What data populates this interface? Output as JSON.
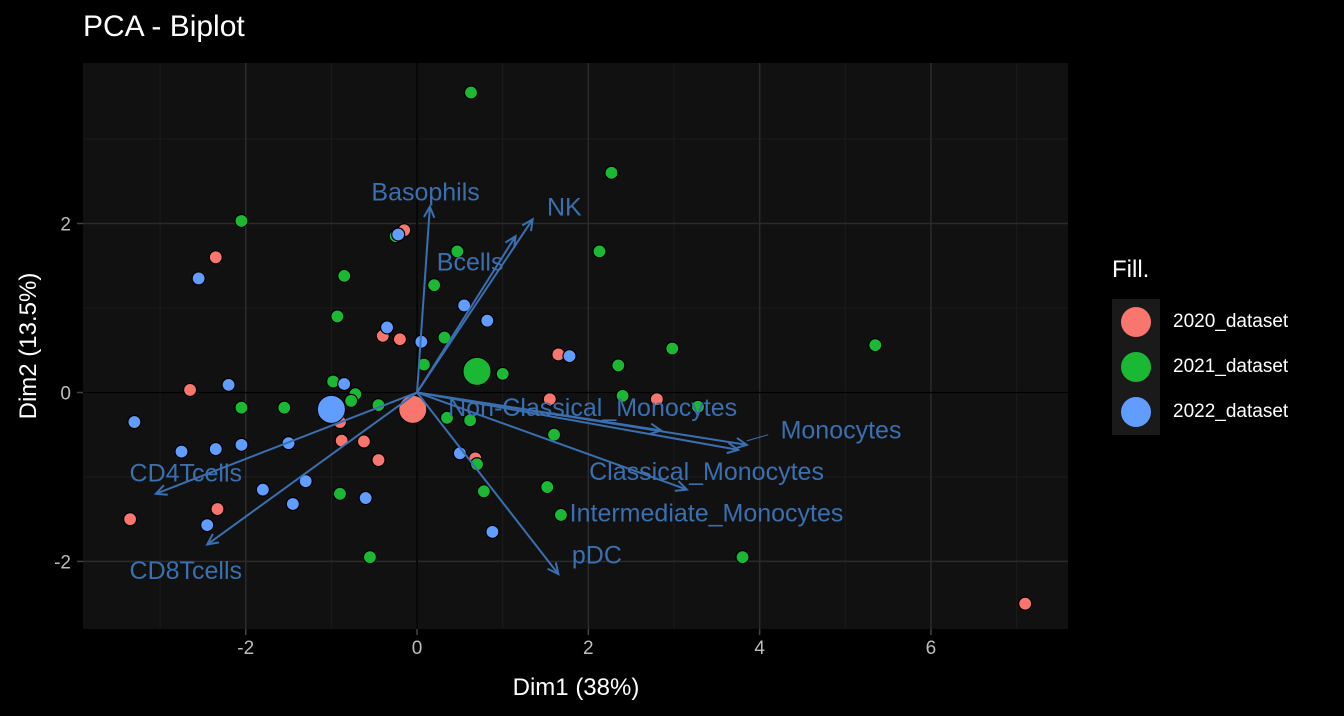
{
  "colors": {
    "background": "#000000",
    "panel": "#111111",
    "grid_major": "#2b2b2b",
    "grid_minor": "#1c1c1c",
    "arrow": "#3a6fb0",
    "group_2020": "#F8766D",
    "group_2021": "#1BB833",
    "group_2022": "#619CFF"
  },
  "chart_data": {
    "type": "scatter",
    "title": "PCA - Biplot",
    "xlabel": "Dim1 (38%)",
    "ylabel": "Dim2 (13.5%)",
    "xlim": [
      -3.9,
      7.6
    ],
    "ylim": [
      -2.8,
      3.9
    ],
    "xticks": [
      -2,
      0,
      2,
      4,
      6
    ],
    "yticks": [
      -2,
      0,
      2
    ],
    "grid": true,
    "legend": {
      "title": "Fill.",
      "position": "right"
    },
    "series": [
      {
        "name": "2020_dataset",
        "color": "#F8766D",
        "points": [
          [
            -2.35,
            1.6
          ],
          [
            -2.65,
            0.03
          ],
          [
            -3.35,
            -1.5
          ],
          [
            -2.33,
            -1.38
          ],
          [
            -0.15,
            1.92
          ],
          [
            -0.4,
            0.67
          ],
          [
            -0.2,
            0.63
          ],
          [
            -0.9,
            -0.35
          ],
          [
            -0.88,
            -0.57
          ],
          [
            -0.62,
            -0.58
          ],
          [
            -0.45,
            -0.8
          ],
          [
            0.05,
            -0.2
          ],
          [
            0.35,
            -0.3
          ],
          [
            0.68,
            -0.78
          ],
          [
            1.55,
            -0.08
          ],
          [
            1.65,
            0.45
          ],
          [
            2.8,
            -0.08
          ],
          [
            7.1,
            -2.5
          ]
        ],
        "centroid": [
          -0.05,
          -0.2
        ]
      },
      {
        "name": "2021_dataset",
        "color": "#1BB833",
        "points": [
          [
            0.63,
            3.55
          ],
          [
            2.27,
            2.6
          ],
          [
            -2.05,
            2.03
          ],
          [
            -0.25,
            1.85
          ],
          [
            0.47,
            1.67
          ],
          [
            2.13,
            1.67
          ],
          [
            -0.85,
            1.38
          ],
          [
            0.2,
            1.27
          ],
          [
            -0.93,
            0.9
          ],
          [
            0.32,
            0.65
          ],
          [
            0.08,
            0.33
          ],
          [
            1.0,
            0.22
          ],
          [
            2.35,
            0.32
          ],
          [
            2.98,
            0.52
          ],
          [
            5.35,
            0.56
          ],
          [
            -0.98,
            0.13
          ],
          [
            -0.72,
            -0.02
          ],
          [
            -0.77,
            -0.1
          ],
          [
            -2.05,
            -0.18
          ],
          [
            -1.55,
            -0.18
          ],
          [
            -0.45,
            -0.15
          ],
          [
            0.35,
            -0.3
          ],
          [
            0.62,
            -0.33
          ],
          [
            2.4,
            -0.04
          ],
          [
            3.28,
            -0.17
          ],
          [
            1.6,
            -0.5
          ],
          [
            0.7,
            -0.85
          ],
          [
            0.78,
            -1.17
          ],
          [
            1.52,
            -1.12
          ],
          [
            1.68,
            -1.45
          ],
          [
            -0.9,
            -1.2
          ],
          [
            -0.55,
            -1.95
          ],
          [
            3.8,
            -1.95
          ]
        ],
        "centroid": [
          0.7,
          0.25
        ]
      },
      {
        "name": "2022_dataset",
        "color": "#619CFF",
        "points": [
          [
            -2.55,
            1.35
          ],
          [
            -0.22,
            1.87
          ],
          [
            0.55,
            1.03
          ],
          [
            0.82,
            0.85
          ],
          [
            -0.35,
            0.77
          ],
          [
            0.05,
            0.6
          ],
          [
            1.78,
            0.43
          ],
          [
            -2.2,
            0.09
          ],
          [
            -0.85,
            0.1
          ],
          [
            -3.3,
            -0.35
          ],
          [
            -2.75,
            -0.7
          ],
          [
            -2.35,
            -0.67
          ],
          [
            -2.05,
            -0.62
          ],
          [
            -1.5,
            -0.6
          ],
          [
            -1.8,
            -1.15
          ],
          [
            -1.3,
            -1.05
          ],
          [
            -1.45,
            -1.32
          ],
          [
            -0.6,
            -1.25
          ],
          [
            -2.45,
            -1.57
          ],
          [
            0.5,
            -0.72
          ],
          [
            0.88,
            -1.65
          ]
        ],
        "centroid": [
          -1.0,
          -0.2
        ]
      }
    ],
    "loadings": [
      {
        "name": "Basophils",
        "x": 0.15,
        "y": 2.2
      },
      {
        "name": "NK",
        "x": 1.35,
        "y": 2.05
      },
      {
        "name": "Bcells",
        "x": 1.15,
        "y": 1.85
      },
      {
        "name": "Non-Classical_Monocytes",
        "x": 2.85,
        "y": -0.45
      },
      {
        "name": "Monocytes",
        "x": 3.85,
        "y": -0.62
      },
      {
        "name": "Classical_Monocytes",
        "x": 3.15,
        "y": -1.15
      },
      {
        "name": "Intermediate_Monocytes",
        "x": 3.75,
        "y": -0.68
      },
      {
        "name": "pDC",
        "x": 1.65,
        "y": -2.15
      },
      {
        "name": "CD4Tcells",
        "x": -3.05,
        "y": -1.2
      },
      {
        "name": "CD8Tcells",
        "x": -2.45,
        "y": -1.8
      }
    ],
    "loading_labels": [
      {
        "text": "Basophils",
        "x": 0.1,
        "y": 2.38
      },
      {
        "text": "NK",
        "x": 1.72,
        "y": 2.2
      },
      {
        "text": "Bcells",
        "x": 0.62,
        "y": 1.55
      },
      {
        "text": "Non-Classical_Monocytes",
        "x": 2.05,
        "y": -0.17
      },
      {
        "text": "Monocytes",
        "x": 4.95,
        "y": -0.44
      },
      {
        "text": "Classical_Monocytes",
        "x": 3.38,
        "y": -0.93
      },
      {
        "text": "Intermediate_Monocytes",
        "x": 3.38,
        "y": -1.42
      },
      {
        "text": "pDC",
        "x": 2.1,
        "y": -1.92
      },
      {
        "text": "CD4Tcells",
        "x": -2.7,
        "y": -0.95
      },
      {
        "text": "CD8Tcells",
        "x": -2.7,
        "y": -2.1
      }
    ]
  }
}
